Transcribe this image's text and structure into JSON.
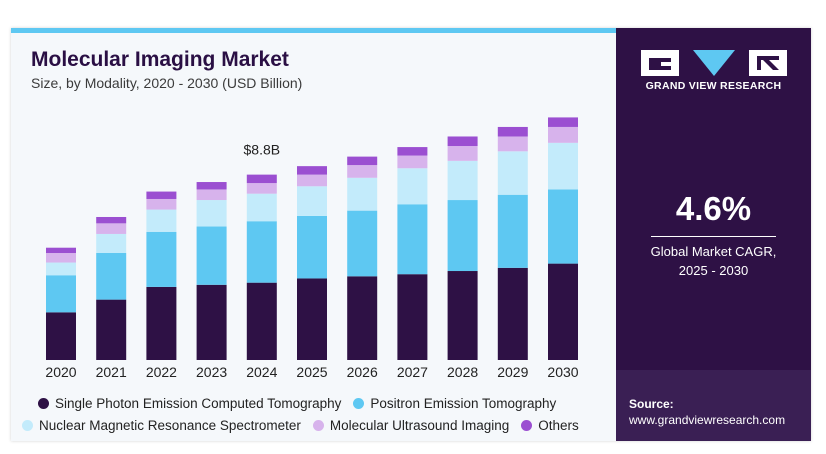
{
  "header": {
    "title": "Molecular Imaging Market",
    "subtitle": "Size, by Modality, 2020 - 2030 (USD Billion)"
  },
  "chart_data": {
    "type": "bar",
    "stacked": true,
    "categories": [
      "2020",
      "2021",
      "2022",
      "2023",
      "2024",
      "2025",
      "2026",
      "2027",
      "2028",
      "2029",
      "2030"
    ],
    "ylim": [
      0,
      11.8
    ],
    "grid": false,
    "legend_position": "bottom",
    "annotation": {
      "category": "2024",
      "text": "$8.8B"
    },
    "series": [
      {
        "name": "Single Photon Emission Computed Tomography",
        "color": "#2e1145",
        "values": [
          2.25,
          2.85,
          3.45,
          3.55,
          3.65,
          3.85,
          3.95,
          4.05,
          4.2,
          4.35,
          4.55
        ]
      },
      {
        "name": "Positron Emission Tomography",
        "color": "#5ec8f2",
        "values": [
          1.75,
          2.2,
          2.6,
          2.75,
          2.9,
          2.95,
          3.1,
          3.3,
          3.35,
          3.45,
          3.5
        ]
      },
      {
        "name": "Nuclear Magnetic Resonance Spectrometer",
        "color": "#c3ebfb",
        "values": [
          0.6,
          0.9,
          1.05,
          1.25,
          1.3,
          1.4,
          1.55,
          1.7,
          1.85,
          2.05,
          2.2
        ]
      },
      {
        "name": "Molecular Ultrasound Imaging",
        "color": "#d7b3ec",
        "values": [
          0.45,
          0.5,
          0.5,
          0.5,
          0.5,
          0.55,
          0.6,
          0.6,
          0.7,
          0.7,
          0.75
        ]
      },
      {
        "name": "Others",
        "color": "#9b4fd1",
        "values": [
          0.25,
          0.3,
          0.35,
          0.35,
          0.4,
          0.4,
          0.4,
          0.4,
          0.45,
          0.45,
          0.45
        ]
      }
    ]
  },
  "legend": {
    "rows": [
      [
        0,
        1
      ],
      [
        2,
        3,
        4
      ]
    ]
  },
  "sidebar": {
    "logo_text": "GRAND VIEW RESEARCH",
    "cagr_value": "4.6%",
    "cagr_label_line1": "Global Market CAGR,",
    "cagr_label_line2": "2025 - 2030",
    "source_label": "Source:",
    "source_url": "www.grandviewresearch.com"
  },
  "colors": {
    "brand_dark": "#2e1145",
    "accent": "#5ec8f2",
    "card_background": "#f5f8fb"
  }
}
